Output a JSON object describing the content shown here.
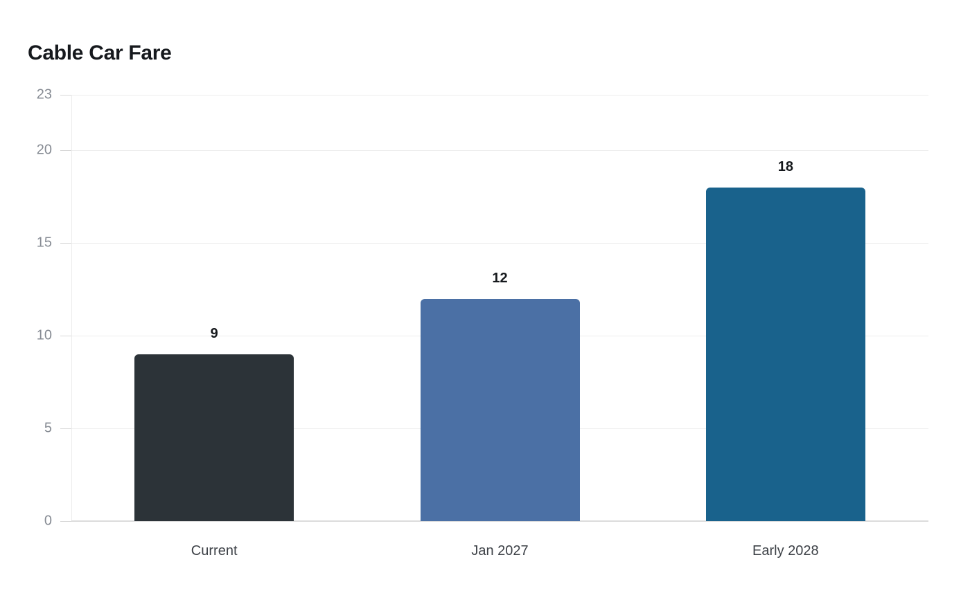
{
  "chart_data": {
    "type": "bar",
    "title": "Cable Car Fare",
    "categories": [
      "Current",
      "Jan 2027",
      "Early 2028"
    ],
    "values": [
      9,
      12,
      18
    ],
    "value_labels": [
      "9",
      "12",
      "18"
    ],
    "bar_colors": [
      "#2c3338",
      "#4b70a5",
      "#19628c"
    ],
    "xlabel": "",
    "ylabel": "",
    "ylim": [
      0,
      23
    ],
    "yticks": [
      0,
      5,
      10,
      15,
      20,
      23
    ],
    "grid": true,
    "legend": "none",
    "background": "#ffffff"
  }
}
